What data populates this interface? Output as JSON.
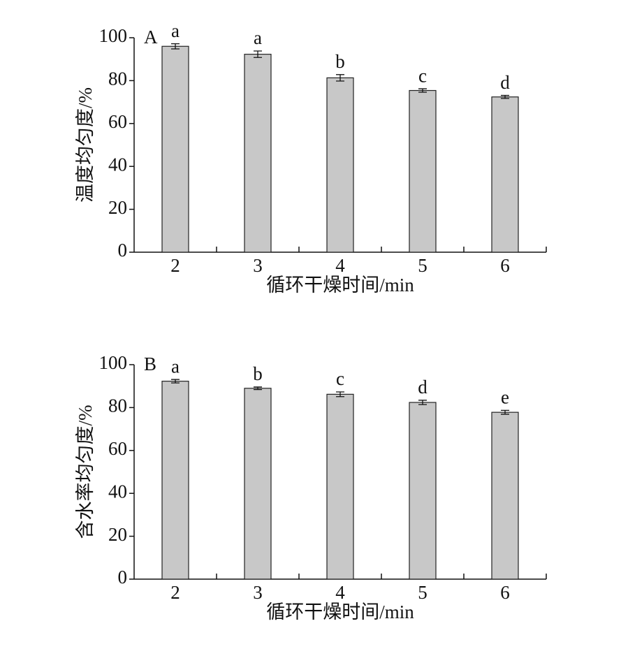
{
  "chart_data": [
    {
      "type": "bar",
      "panel_label": "A",
      "x_label": "循环干燥时间/min",
      "y_label": "温度均匀度/%",
      "categories": [
        "2",
        "3",
        "4",
        "5",
        "6"
      ],
      "values": [
        96,
        92.3,
        81.3,
        75.4,
        72.4
      ],
      "errors": [
        1.2,
        1.5,
        1.5,
        0.8,
        0.7
      ],
      "labels": [
        "a",
        "a",
        "b",
        "c",
        "d"
      ],
      "color": "#c8c8c8",
      "ylim": [
        0,
        100
      ],
      "yticks": [
        0,
        20,
        40,
        60,
        80,
        100
      ]
    },
    {
      "type": "bar",
      "panel_label": "B",
      "x_label": "循环干燥时间/min",
      "y_label": "含水率均匀度/%",
      "categories": [
        "2",
        "3",
        "4",
        "5",
        "6"
      ],
      "values": [
        92.3,
        89,
        86.2,
        82.4,
        77.8
      ],
      "errors": [
        0.8,
        0.6,
        1.1,
        1.0,
        0.9
      ],
      "labels": [
        "a",
        "b",
        "c",
        "d",
        "e"
      ],
      "color": "#c8c8c8",
      "ylim": [
        0,
        100
      ],
      "yticks": [
        0,
        20,
        40,
        60,
        80,
        100
      ]
    }
  ]
}
